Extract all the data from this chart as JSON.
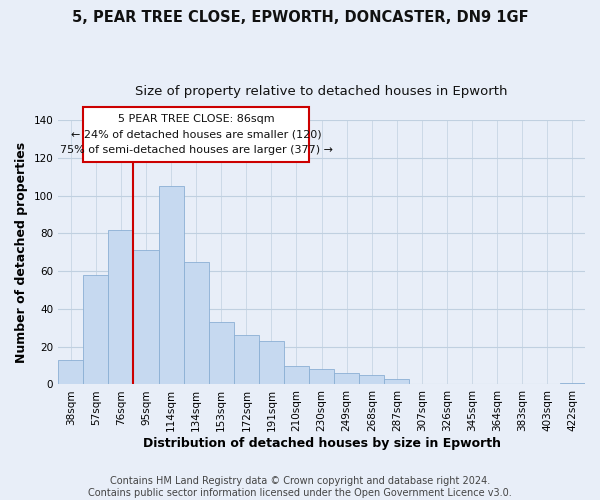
{
  "title": "5, PEAR TREE CLOSE, EPWORTH, DONCASTER, DN9 1GF",
  "subtitle": "Size of property relative to detached houses in Epworth",
  "xlabel": "Distribution of detached houses by size in Epworth",
  "ylabel": "Number of detached properties",
  "bar_labels": [
    "38sqm",
    "57sqm",
    "76sqm",
    "95sqm",
    "114sqm",
    "134sqm",
    "153sqm",
    "172sqm",
    "191sqm",
    "210sqm",
    "230sqm",
    "249sqm",
    "268sqm",
    "287sqm",
    "307sqm",
    "326sqm",
    "345sqm",
    "364sqm",
    "383sqm",
    "403sqm",
    "422sqm"
  ],
  "bar_values": [
    13,
    58,
    82,
    71,
    105,
    65,
    33,
    26,
    23,
    10,
    8,
    6,
    5,
    3,
    0,
    0,
    0,
    0,
    0,
    0,
    1
  ],
  "bar_color": "#c6d9f0",
  "bar_edge_color": "#8bafd4",
  "vline_x_index": 3,
  "vline_color": "#cc0000",
  "ylim": [
    0,
    140
  ],
  "yticks": [
    0,
    20,
    40,
    60,
    80,
    100,
    120,
    140
  ],
  "ann_line1": "5 PEAR TREE CLOSE: 86sqm",
  "ann_line2": "← 24% of detached houses are smaller (120)",
  "ann_line3": "75% of semi-detached houses are larger (377) →",
  "footer_text": "Contains HM Land Registry data © Crown copyright and database right 2024.\nContains public sector information licensed under the Open Government Licence v3.0.",
  "background_color": "#e8eef8",
  "plot_bg_color": "#e8eef8",
  "grid_color": "#c0d0e0",
  "title_fontsize": 10.5,
  "subtitle_fontsize": 9.5,
  "axis_label_fontsize": 9,
  "tick_fontsize": 7.5,
  "footer_fontsize": 7
}
